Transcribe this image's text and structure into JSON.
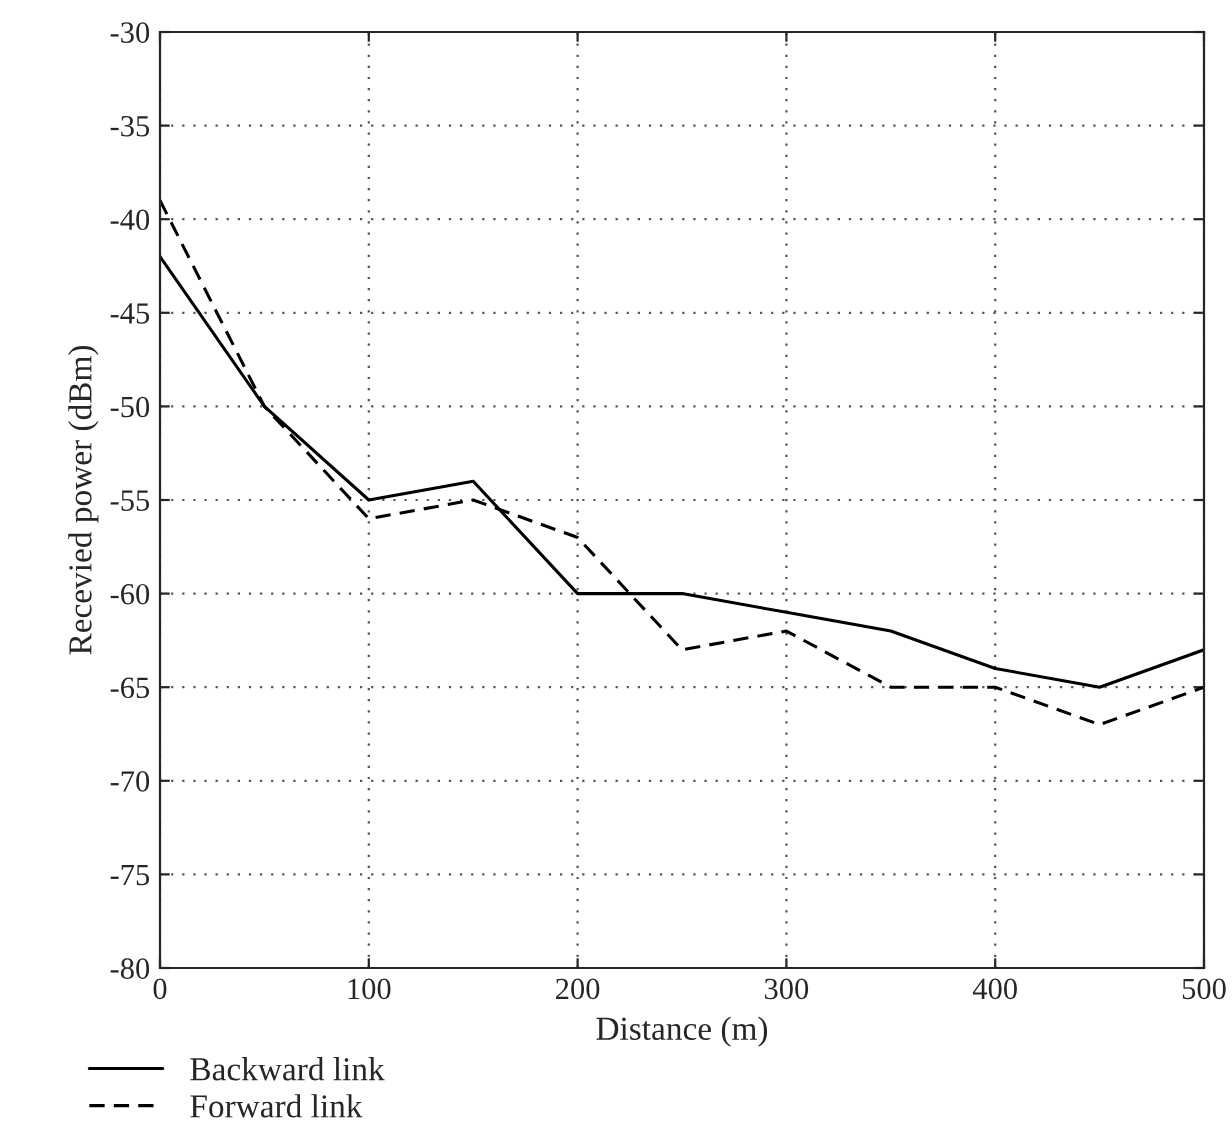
{
  "chart_data": {
    "type": "line",
    "xlabel": "Distance (m)",
    "ylabel": "Recevied power (dBm)",
    "x": [
      0,
      50,
      100,
      150,
      200,
      250,
      300,
      350,
      400,
      450,
      500
    ],
    "series": [
      {
        "name": "Backward link",
        "color": "#000000",
        "line_style": "solid",
        "values": [
          -42,
          -50,
          -55,
          -54,
          -60,
          -60,
          -61,
          -62,
          -64,
          -65,
          -63
        ]
      },
      {
        "name": "Forward link",
        "color": "#000000",
        "line_style": "dashed",
        "values": [
          -39,
          -50,
          -56,
          -55,
          -57,
          -63,
          -62,
          -65,
          -65,
          -67,
          -65
        ]
      }
    ],
    "xlim": [
      0,
      500
    ],
    "xticks": [
      0,
      100,
      200,
      300,
      400,
      500
    ],
    "ylim": [
      -80,
      -30
    ],
    "yticks": [
      -80,
      -75,
      -70,
      -65,
      -60,
      -55,
      -50,
      -45,
      -40,
      -35,
      -30
    ],
    "grid": true,
    "legend": "bottom left",
    "marker": "none"
  }
}
